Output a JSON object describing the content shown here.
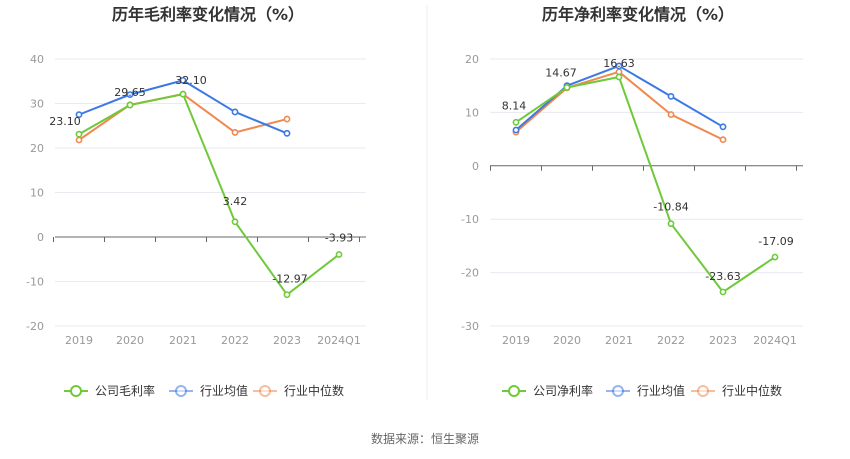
{
  "source_label": "数据来源：恒生聚源",
  "colors": {
    "company": "#6fc93a",
    "industry_avg": "#3b79e6",
    "industry_median": "#f0884f",
    "grid": "#e8eaf0",
    "axis": "#666666"
  },
  "chart_data": [
    {
      "type": "line",
      "title": "历年毛利率变化情况（%）",
      "xlabel": "",
      "ylabel": "",
      "categories": [
        "2019",
        "2020",
        "2021",
        "2022",
        "2023",
        "2024Q1"
      ],
      "ylim": [
        -20,
        40
      ],
      "yticks": [
        40,
        30,
        20,
        10,
        0,
        -10,
        -20
      ],
      "grid": true,
      "legend_position": "bottom",
      "series": [
        {
          "name": "公司毛利率",
          "values": [
            23.1,
            29.65,
            32.1,
            3.42,
            -12.97,
            -3.93
          ],
          "labeled": true
        },
        {
          "name": "行业均值",
          "values": [
            27.5,
            32.0,
            35.2,
            28.1,
            23.3,
            null
          ],
          "labeled": false
        },
        {
          "name": "行业中位数",
          "values": [
            21.8,
            29.7,
            32.1,
            23.5,
            26.5,
            null
          ],
          "labeled": false
        }
      ]
    },
    {
      "type": "line",
      "title": "历年净利率变化情况（%）",
      "xlabel": "",
      "ylabel": "",
      "categories": [
        "2019",
        "2020",
        "2021",
        "2022",
        "2023",
        "2024Q1"
      ],
      "ylim": [
        -30,
        20
      ],
      "yticks": [
        20,
        10,
        0,
        -10,
        -20,
        -30
      ],
      "grid": true,
      "legend_position": "bottom",
      "series": [
        {
          "name": "公司净利率",
          "values": [
            8.14,
            14.67,
            16.63,
            -10.84,
            -23.63,
            -17.09
          ],
          "labeled": true
        },
        {
          "name": "行业均值",
          "values": [
            6.7,
            15.0,
            18.7,
            13.0,
            7.3,
            null
          ],
          "labeled": false
        },
        {
          "name": "行业中位数",
          "values": [
            6.3,
            14.6,
            17.6,
            9.6,
            4.9,
            null
          ],
          "labeled": false
        }
      ]
    }
  ]
}
